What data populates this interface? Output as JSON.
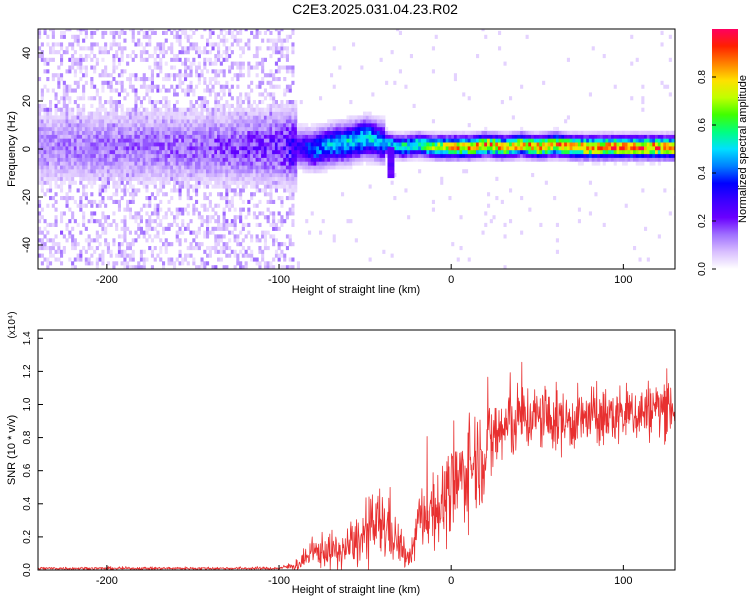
{
  "title": "C2E3.2025.031.04.23.R02",
  "chart_data": [
    {
      "type": "heatmap",
      "xlabel": "Height of straight line (km)",
      "ylabel": "Frequency (Hz)",
      "xlim": [
        -240,
        130
      ],
      "ylim": [
        -50,
        50
      ],
      "x_ticks": [
        -200,
        -100,
        0,
        100
      ],
      "x_tick_labels": [
        "-200",
        "-100",
        "0",
        "100"
      ],
      "y_ticks": [
        -40,
        -20,
        0,
        20,
        40
      ],
      "y_tick_labels": [
        "-40",
        "-20",
        "0",
        "20",
        "40"
      ],
      "grid": false,
      "colorbar": {
        "label": "Normalized spectral amplitude",
        "range": [
          0,
          1
        ],
        "ticks": [
          0.0,
          0.2,
          0.4,
          0.6,
          0.8
        ],
        "tick_labels": [
          "0.0",
          "0.2",
          "0.4",
          "0.6",
          "0.8"
        ],
        "colormap": [
          "#ffffff",
          "#d9bfff",
          "#a070ff",
          "#6a00ff",
          "#3a00ff",
          "#0000ff",
          "#0080ff",
          "#00e0ff",
          "#00ff80",
          "#40ff00",
          "#c0ff00",
          "#ffe000",
          "#ff8000",
          "#ff2000",
          "#ff0060"
        ]
      },
      "ridge": {
        "description_points_x": [
          -240,
          -200,
          -150,
          -100,
          -90,
          -80,
          -70,
          -60,
          -50,
          -45,
          -40,
          -35,
          -30,
          -20,
          -10,
          0,
          10,
          20,
          30,
          40,
          50,
          60,
          70,
          80,
          90,
          100,
          110,
          120,
          130
        ],
        "center_hz": [
          0,
          0,
          0,
          0,
          0,
          -1,
          1,
          2,
          4,
          3,
          2,
          1,
          0,
          1,
          0,
          0,
          0,
          1,
          0,
          1,
          0,
          1,
          0,
          0,
          0,
          0,
          0,
          0,
          0
        ],
        "peak_amplitude": [
          0.12,
          0.14,
          0.15,
          0.2,
          0.3,
          0.45,
          0.5,
          0.55,
          0.55,
          0.5,
          0.5,
          0.55,
          0.6,
          0.65,
          0.75,
          0.85,
          0.9,
          0.9,
          0.85,
          0.88,
          0.9,
          0.88,
          0.92,
          0.95,
          0.95,
          0.95,
          0.95,
          0.95,
          0.95
        ]
      }
    },
    {
      "type": "line",
      "xlabel": "Height of straight line (km)",
      "ylabel": "SNR (10 * v/v)",
      "y_multiplier_label": "(x10⁴)",
      "xlim": [
        -240,
        130
      ],
      "ylim": [
        0,
        1.45
      ],
      "x_ticks": [
        -200,
        -100,
        0,
        100
      ],
      "x_tick_labels": [
        "-200",
        "-100",
        "0",
        "100"
      ],
      "y_ticks": [
        0.0,
        0.2,
        0.4,
        0.6,
        0.8,
        1.0,
        1.2,
        1.4
      ],
      "y_tick_labels": [
        "0.0",
        "0.2",
        "0.4",
        "0.6",
        "0.8",
        "1.0",
        "1.2",
        "1.4"
      ],
      "grid": false,
      "series": [
        {
          "color": "#e83030",
          "envelope_x": [
            -240,
            -200,
            -150,
            -100,
            -95,
            -90,
            -85,
            -80,
            -75,
            -70,
            -65,
            -60,
            -55,
            -50,
            -45,
            -40,
            -35,
            -30,
            -25,
            -22,
            -20,
            -15,
            -10,
            -5,
            0,
            5,
            10,
            15,
            20,
            25,
            30,
            35,
            40,
            50,
            60,
            70,
            80,
            90,
            100,
            110,
            120,
            130
          ],
          "envelope_mean": [
            0.01,
            0.01,
            0.01,
            0.01,
            0.02,
            0.03,
            0.06,
            0.1,
            0.12,
            0.12,
            0.1,
            0.14,
            0.16,
            0.2,
            0.26,
            0.28,
            0.25,
            0.14,
            0.06,
            0.12,
            0.28,
            0.34,
            0.38,
            0.4,
            0.45,
            0.55,
            0.62,
            0.68,
            0.72,
            0.8,
            0.85,
            0.88,
            0.92,
            0.92,
            0.9,
            0.9,
            0.92,
            0.92,
            0.94,
            0.95,
            0.98,
            1.0
          ],
          "envelope_spread": [
            0.01,
            0.01,
            0.01,
            0.01,
            0.02,
            0.04,
            0.06,
            0.09,
            0.12,
            0.12,
            0.12,
            0.14,
            0.16,
            0.2,
            0.24,
            0.26,
            0.24,
            0.14,
            0.06,
            0.1,
            0.2,
            0.24,
            0.26,
            0.28,
            0.3,
            0.32,
            0.34,
            0.34,
            0.32,
            0.3,
            0.28,
            0.26,
            0.24,
            0.22,
            0.22,
            0.2,
            0.2,
            0.2,
            0.2,
            0.2,
            0.2,
            0.2
          ]
        }
      ]
    }
  ]
}
